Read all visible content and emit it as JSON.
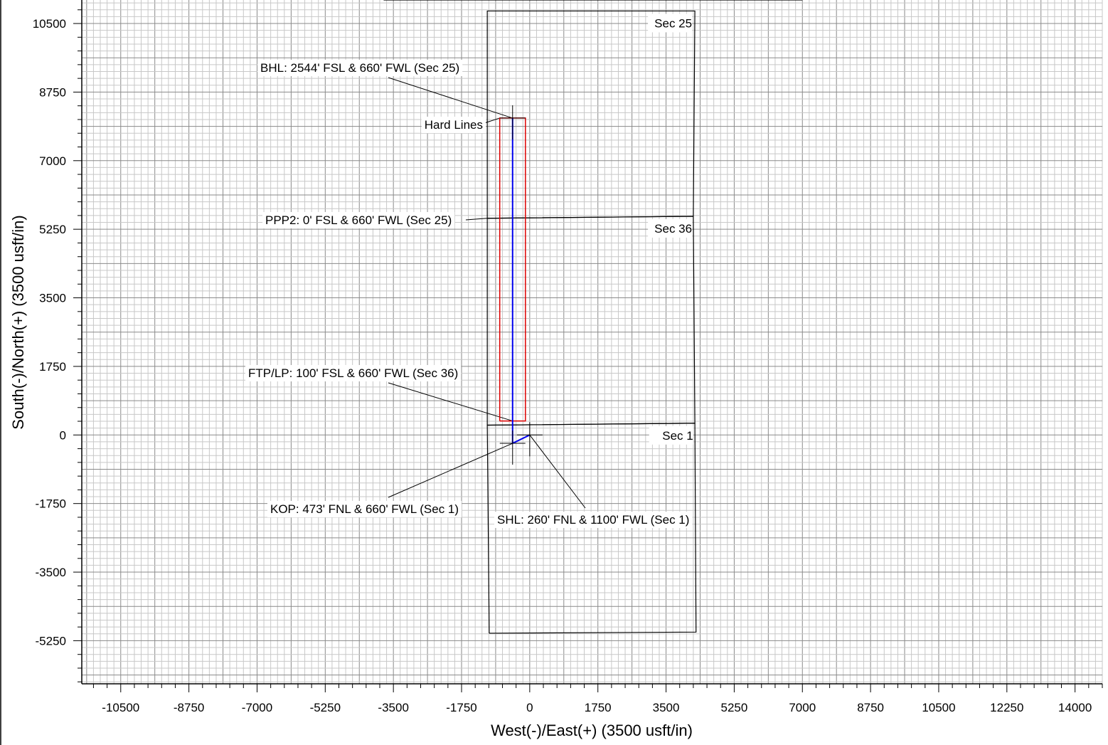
{
  "chart_data": {
    "type": "line",
    "xlabel": "West(-)/East(+) (3500 usft/in)",
    "ylabel": "South(-)/North(+) (3500 usft/in)",
    "xlim": [
      -11500,
      14700
    ],
    "ylim": [
      -6350,
      11100
    ],
    "xticks": [
      -10500,
      -8750,
      -7000,
      -5250,
      -3500,
      -1750,
      0,
      1750,
      3500,
      5250,
      7000,
      8750,
      10500,
      12250,
      14000
    ],
    "yticks": [
      10500,
      8750,
      7000,
      5250,
      3500,
      1750,
      0,
      -1750,
      -3500,
      -5250
    ],
    "grid": true,
    "series": [
      {
        "color": "#0000ee",
        "x": [
          0,
          -440,
          -440,
          -440
        ],
        "y": [
          0,
          -213,
          358,
          8087
        ]
      }
    ],
    "hard_lines": {
      "label": "Hard Lines",
      "color": "#dd0000",
      "x": [
        -770,
        -110,
        -110,
        -770,
        -770
      ],
      "y": [
        358,
        358,
        8087,
        8087,
        358
      ]
    },
    "section_boundaries": [
      {
        "label": "Sec 25",
        "x": [
          -1090,
          4200,
          4240,
          -1090,
          -1090
        ],
        "y": [
          5530,
          5580,
          10820,
          10820,
          5530
        ]
      },
      {
        "label": "Sec 36",
        "x": [
          -1090,
          4240,
          4200,
          -1090,
          -1090
        ],
        "y": [
          250,
          300,
          5580,
          5530,
          250
        ]
      },
      {
        "label": "Sec 1",
        "x": [
          -1040,
          4270,
          4240,
          -1090,
          -1040
        ],
        "y": [
          -5060,
          -5030,
          300,
          250,
          -5060
        ]
      },
      {
        "label": "",
        "x": [
          -3750,
          7000
        ],
        "y": [
          11100,
          11100
        ]
      }
    ],
    "annotations": [
      {
        "text": "BHL: 2544' FSL & 660' FWL (Sec 25)",
        "x": -440,
        "y": 8087
      },
      {
        "text": "Hard Lines",
        "x": -770,
        "y": 8087
      },
      {
        "text": "PPP2: 0' FSL & 660' FWL (Sec 25)",
        "x": -1090,
        "y": 5530
      },
      {
        "text": "FTP/LP: 100' FSL & 660' FWL (Sec 36)",
        "x": -440,
        "y": 358
      },
      {
        "text": "KOP: 473' FNL & 660' FWL (Sec 1)",
        "x": -440,
        "y": -213
      },
      {
        "text": "SHL: 260' FNL & 1100' FWL (Sec 1)",
        "x": 0,
        "y": 0
      }
    ],
    "markers": [
      {
        "x": 0,
        "y": 0
      },
      {
        "x": -440,
        "y": -213
      },
      {
        "x": -440,
        "y": 8087
      }
    ]
  }
}
